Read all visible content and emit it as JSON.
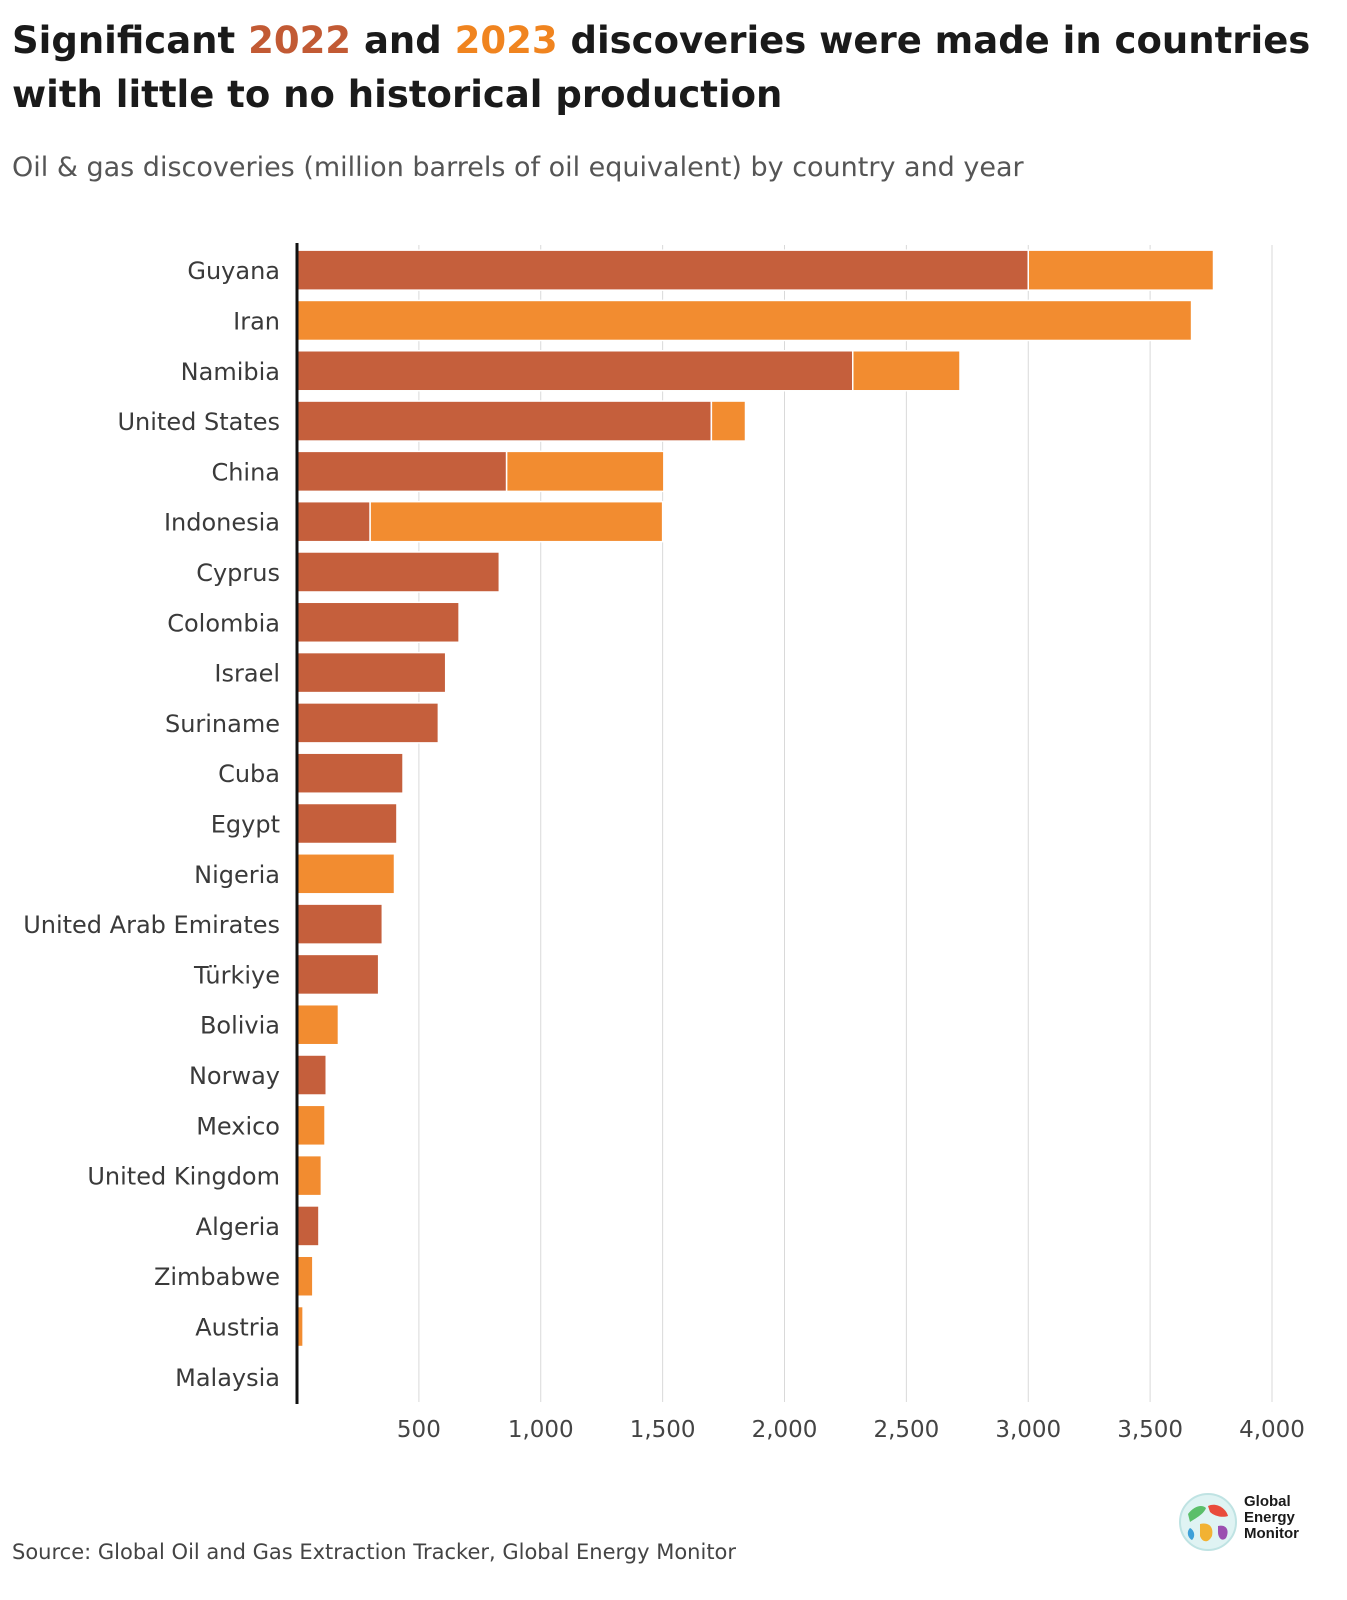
{
  "title": {
    "part1": "Significant ",
    "year_a": "2022",
    "part2": " and ",
    "year_b": "2023",
    "part3": " discoveries were made in countries with little to no historical production"
  },
  "subtitle": "Oil & gas discoveries (million barrels of oil equivalent) by country and year",
  "source": "Source: Global Oil and Gas Extraction Tracker, Global Energy Monitor",
  "logo": {
    "line1": "Global",
    "line2": "Energy",
    "line3": "Monitor",
    "icon": "globe-icon"
  },
  "colors": {
    "2022": "#c55f3c",
    "2023": "#f28c30",
    "grid": "#d9d9d9",
    "axis": "#111111"
  },
  "chart_data": {
    "type": "bar",
    "orientation": "horizontal",
    "stacked": true,
    "categories": [
      "Guyana",
      "Iran",
      "Namibia",
      "United States",
      "China",
      "Indonesia",
      "Cyprus",
      "Colombia",
      "Israel",
      "Suriname",
      "Cuba",
      "Egypt",
      "Nigeria",
      "United Arab Emirates",
      "Türkiye",
      "Bolivia",
      "Norway",
      "Mexico",
      "United Kingdom",
      "Algeria",
      "Zimbabwe",
      "Austria",
      "Malaysia"
    ],
    "series": [
      {
        "name": "2022",
        "values": [
          3000,
          0,
          2280,
          1700,
          860,
          300,
          830,
          665,
          610,
          580,
          435,
          410,
          0,
          350,
          335,
          0,
          120,
          0,
          0,
          90,
          0,
          0,
          3
        ]
      },
      {
        "name": "2023",
        "values": [
          760,
          3670,
          440,
          140,
          645,
          1200,
          0,
          0,
          0,
          0,
          0,
          0,
          400,
          0,
          0,
          170,
          0,
          115,
          100,
          0,
          65,
          25,
          0
        ]
      }
    ],
    "xticks": [
      500,
      1000,
      1500,
      2000,
      2500,
      3000,
      3500,
      4000
    ],
    "xtick_labels": [
      "500",
      "1,000",
      "1,500",
      "2,000",
      "2,500",
      "3,000",
      "3,500",
      "4,000"
    ],
    "xlim": [
      0,
      4000
    ],
    "grid": true,
    "legend": "none (years colored in title)"
  }
}
